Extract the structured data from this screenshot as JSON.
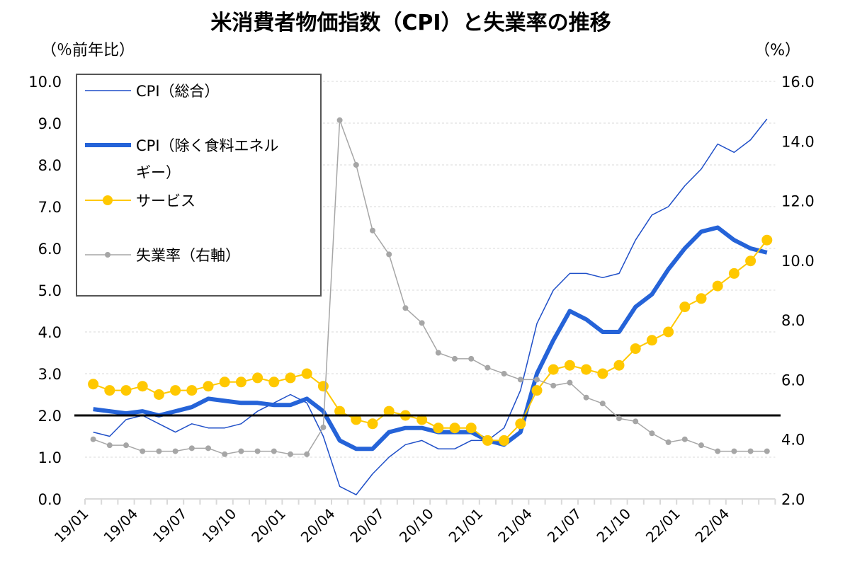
{
  "chart_data": {
    "type": "line",
    "title": "米消費者物価指数（CPI）と失業率の推移",
    "ylabel_left": "（％前年比）",
    "ylabel_right": "（%）",
    "ylim_left": [
      0,
      10
    ],
    "ylim_right": [
      2,
      16
    ],
    "yticks_left": [
      "0.0",
      "1.0",
      "2.0",
      "3.0",
      "4.0",
      "5.0",
      "6.0",
      "7.0",
      "8.0",
      "9.0",
      "10.0"
    ],
    "yticks_right": [
      "2.0",
      "4.0",
      "6.0",
      "8.0",
      "10.0",
      "12.0",
      "14.0",
      "16.0"
    ],
    "x": [
      "19/01",
      "19/02",
      "19/03",
      "19/04",
      "19/05",
      "19/06",
      "19/07",
      "19/08",
      "19/09",
      "19/10",
      "19/11",
      "19/12",
      "20/01",
      "20/02",
      "20/03",
      "20/04",
      "20/05",
      "20/06",
      "20/07",
      "20/08",
      "20/09",
      "20/10",
      "20/11",
      "20/12",
      "21/01",
      "21/02",
      "21/03",
      "21/04",
      "21/05",
      "21/06",
      "21/07",
      "21/08",
      "21/09",
      "21/10",
      "21/11",
      "21/12",
      "22/01",
      "22/02",
      "22/03",
      "22/04",
      "22/05",
      "22/06"
    ],
    "xtick_labels": [
      "19/01",
      "19/04",
      "19/07",
      "19/10",
      "20/01",
      "20/04",
      "20/07",
      "20/10",
      "21/01",
      "21/04",
      "21/07",
      "21/10",
      "22/01",
      "22/04"
    ],
    "grid": "horizontal dotted",
    "legend_placement": "top-left",
    "reference_line": {
      "value": 2.0,
      "color": "#000000"
    },
    "series": [
      {
        "name": "CPI（総合）",
        "axis": "left",
        "color": "#1f4fc8",
        "values": [
          1.6,
          1.5,
          1.9,
          2.0,
          1.8,
          1.6,
          1.8,
          1.7,
          1.7,
          1.8,
          2.1,
          2.3,
          2.5,
          2.3,
          1.5,
          0.3,
          0.1,
          0.6,
          1.0,
          1.3,
          1.4,
          1.2,
          1.2,
          1.4,
          1.4,
          1.7,
          2.6,
          4.2,
          5.0,
          5.4,
          5.4,
          5.3,
          5.4,
          6.2,
          6.8,
          7.0,
          7.5,
          7.9,
          8.5,
          8.3,
          8.6,
          9.1
        ]
      },
      {
        "name": "CPI（除く食料エネルギー）",
        "axis": "left",
        "color": "#2563d8",
        "values": [
          2.15,
          2.1,
          2.05,
          2.1,
          2.0,
          2.1,
          2.2,
          2.4,
          2.35,
          2.3,
          2.3,
          2.25,
          2.25,
          2.4,
          2.1,
          1.4,
          1.2,
          1.2,
          1.6,
          1.7,
          1.7,
          1.6,
          1.6,
          1.6,
          1.4,
          1.3,
          1.6,
          3.0,
          3.8,
          4.5,
          4.3,
          4.0,
          4.0,
          4.6,
          4.9,
          5.5,
          6.0,
          6.4,
          6.5,
          6.2,
          6.0,
          5.9
        ]
      },
      {
        "name": "サービス",
        "axis": "left",
        "color": "#ffc800",
        "values": [
          2.75,
          2.6,
          2.6,
          2.7,
          2.5,
          2.6,
          2.6,
          2.7,
          2.8,
          2.8,
          2.9,
          2.8,
          2.9,
          3.0,
          2.7,
          2.1,
          1.9,
          1.8,
          2.1,
          2.0,
          1.9,
          1.7,
          1.7,
          1.7,
          1.4,
          1.4,
          1.8,
          2.6,
          3.1,
          3.2,
          3.1,
          3.0,
          3.2,
          3.6,
          3.8,
          4.0,
          4.6,
          4.8,
          5.1,
          5.4,
          5.7,
          6.2
        ]
      },
      {
        "name": "失業率（右軸）",
        "axis": "right",
        "color": "#a6a6a6",
        "values": [
          4.0,
          3.8,
          3.8,
          3.6,
          3.6,
          3.6,
          3.7,
          3.7,
          3.5,
          3.6,
          3.6,
          3.6,
          3.5,
          3.5,
          4.4,
          14.7,
          13.2,
          11.0,
          10.2,
          8.4,
          7.9,
          6.9,
          6.7,
          6.7,
          6.4,
          6.2,
          6.0,
          6.0,
          5.8,
          5.9,
          5.4,
          5.2,
          4.7,
          4.6,
          4.2,
          3.9,
          4.0,
          3.8,
          3.6,
          3.6,
          3.6,
          3.6
        ]
      }
    ],
    "legend": {
      "cpi_all": "CPI（総合）",
      "core_line1": "CPI（除く食料エネル",
      "core_line2": "ギー）",
      "services": "サービス",
      "unemployment": "失業率（右軸）"
    }
  }
}
